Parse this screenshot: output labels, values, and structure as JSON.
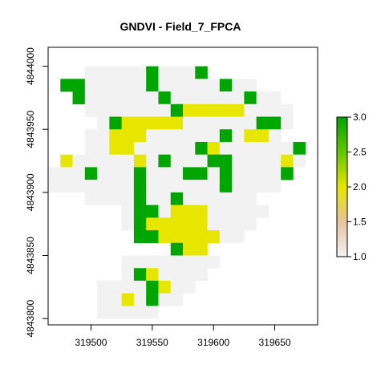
{
  "chart_data": {
    "type": "heatmap",
    "title": "GNDVI - Field_7_FPCA",
    "xlabel": "",
    "ylabel": "",
    "xlim": [
      319465,
      319685
    ],
    "ylim": [
      4843795,
      4844015
    ],
    "x_ticks": [
      319500,
      319550,
      319600,
      319650
    ],
    "y_ticks": [
      4843800,
      4843850,
      4843900,
      4843950,
      4844000
    ],
    "cell_size": 10,
    "grid_origin": {
      "x_min": 319465,
      "y_max": 4844010
    },
    "value_range": [
      1.0,
      3.0
    ],
    "colorbar": {
      "ticks": [
        "1.0",
        "1.5",
        "2.0",
        "2.5",
        "3.0"
      ],
      "stops": [
        {
          "value": 1.0,
          "color": "#f2f2f2"
        },
        {
          "value": 1.5,
          "color": "#e8c39e"
        },
        {
          "value": 2.0,
          "color": "#e6e600"
        },
        {
          "value": 2.5,
          "color": "#63c600"
        },
        {
          "value": 3.0,
          "color": "#00a600"
        }
      ]
    },
    "grid": [
      "..................................",
      "...HHHHHMHHHM.......",
      ".GGHHHHHGHHHHHGHH...",
      "..MHHHHHHGHHHHHHMHH.",
      "...HHHHHHHGYYYYYHHHH",
      "....HGYYYYYHHHHHHGGH",
      "...HHYYYHHHHHHGHYYH.",
      "...HHYYHHHHHGYHHHHHHG",
      ".YHHHHHYHGHHHGGHHHHYH",
      "HHHGHHHGHHHGGHGHHHHG.",
      "HHHHHHHGHHHHHHGHHHH..",
      "...HHHHGHHGHHHHHH...",
      "......HGGHYYYHHHHH..",
      "......HGYYYYYHHHH...",
      ".......GGYYYYYHH.....",
      "..........GYY.......",
      "......HHHHHHHH......",
      "......HGYHHHH.......",
      "....HHHHGYHH........",
      "....HHYHGHH.........",
      "....HHHHH..........."
    ],
    "legend": {
      "H": 1.0,
      "Y": 2.0,
      "M": 3.0,
      "G": 3.0
    }
  }
}
